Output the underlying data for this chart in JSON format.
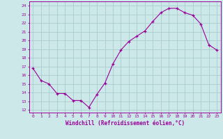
{
  "x": [
    0,
    1,
    2,
    3,
    4,
    5,
    6,
    7,
    8,
    9,
    10,
    11,
    12,
    13,
    14,
    15,
    16,
    17,
    18,
    19,
    20,
    21,
    22,
    23
  ],
  "y": [
    16.8,
    15.4,
    15.0,
    13.9,
    13.9,
    13.1,
    13.1,
    12.3,
    13.8,
    15.1,
    17.3,
    18.9,
    19.9,
    20.5,
    21.1,
    22.2,
    23.2,
    23.7,
    23.7,
    23.2,
    22.9,
    21.9,
    19.5,
    18.9
  ],
  "line_color": "#990099",
  "marker": "+",
  "bg_color": "#cce8e8",
  "grid_color": "#aacccc",
  "ylabel_ticks": [
    12,
    13,
    14,
    15,
    16,
    17,
    18,
    19,
    20,
    21,
    22,
    23,
    24
  ],
  "xlabel": "Windchill (Refroidissement éolien,°C)",
  "ylim": [
    11.7,
    24.5
  ],
  "xlim": [
    -0.5,
    23.5
  ],
  "tick_color": "#990099",
  "font_family": "monospace"
}
